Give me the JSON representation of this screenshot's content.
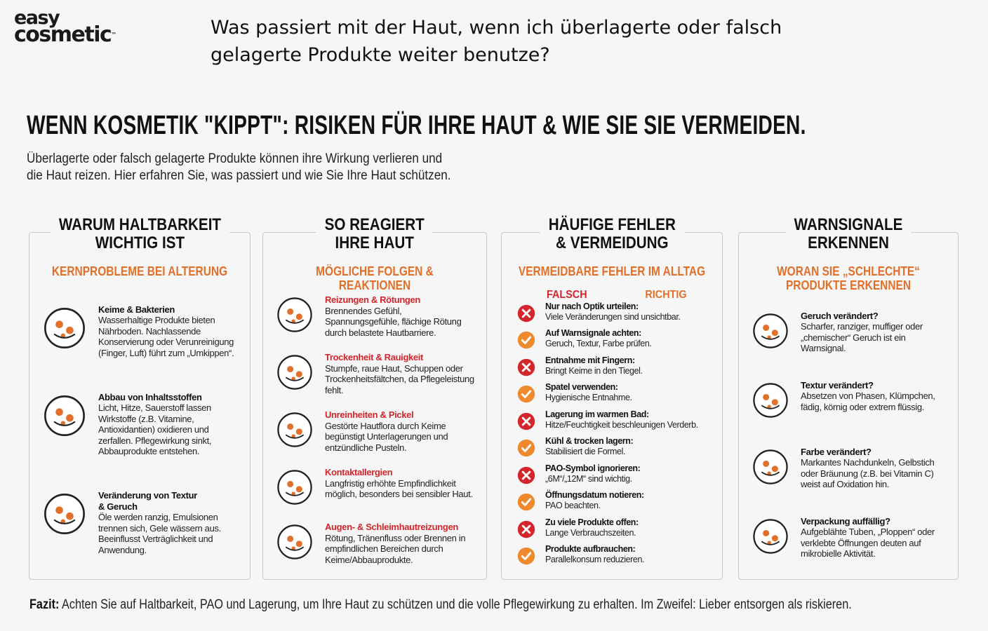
{
  "logo": {
    "line1": "easy",
    "line2": "cosmetic",
    "tm": "™"
  },
  "question": "Was passiert mit der Haut, wenn ich überlagerte oder falsch\ngelagerte Produkte weiter benutze?",
  "title": "WENN KOSMETIK \"KIPPT\": RISIKEN FÜR IHRE HAUT & WIE SIE SIE VERMEIDEN.",
  "intro": "Überlagerte oder falsch gelagerte Produkte können ihre Wirkung verlieren und\ndie Haut reizen. Hier erfahren Sie, was passiert und wie Sie Ihre Haut schützen.",
  "columns": [
    {
      "title": "WARUM HALTBARKEIT\nWICHTIG IST",
      "subtitle": "KERNPROBLEME BEI ALTERUNG",
      "items": [
        {
          "heading": "Keime & Bakterien",
          "text": "Wasserhaltige Produkte bieten Nährboden. Nachlassende Konservierung oder Verunreinigung (Finger, Luft) führt zum „Umkippen“."
        },
        {
          "heading": "Abbau von Inhaltsstoffen",
          "text": "Licht, Hitze, Sauerstoff lassen Wirkstoffe (z.B. Vitamine, Antioxidantien) oxidieren und zerfallen. Pflegewirkung sinkt, Abbauprodukte entstehen."
        },
        {
          "heading": "Veränderung von Textur\n& Geruch",
          "text": "Öle werden ranzig, Emulsionen trennen sich, Gele wässern aus. Beeinflusst Verträglichkeit und Anwendung."
        }
      ]
    },
    {
      "title": "SO REAGIERT\nIHRE HAUT",
      "subtitle": "MÖGLICHE FOLGEN & REAKTIONEN",
      "items": [
        {
          "heading": "Reizungen & Rötungen",
          "text": "Brennendes Gefühl, Spannungsgefühle, flächige Rötung durch belastete Hautbarriere."
        },
        {
          "heading": "Trockenheit & Rauigkeit",
          "text": "Stumpfe, raue Haut, Schuppen oder Trockenheitsfältchen, da Pflegeleistung fehlt."
        },
        {
          "heading": "Unreinheiten & Pickel",
          "text": "Gestörte Hautflora durch Keime begünstigt Unterlagerungen und entzündliche Pusteln."
        },
        {
          "heading": "Kontaktallergien",
          "text": "Langfristig erhöhte Empfindlichkeit möglich, besonders bei sensibler Haut."
        },
        {
          "heading": "Augen- & Schleimhautreizungen",
          "text": "Rötung, Tränenfluss oder Brennen in empfindlichen Bereichen durch Keime/Abbauprodukte."
        }
      ]
    },
    {
      "title": "HÄUFIGE FEHLER\n& VERMEIDUNG",
      "subtitle": "VERMEIDBARE FEHLER IM ALLTAG",
      "labels": {
        "wrong": "FALSCH",
        "right": "RICHTIG"
      },
      "pairs": [
        {
          "wrong": {
            "heading": "Nur nach Optik urteilen:",
            "text": "Viele Veränderungen sind unsichtbar."
          },
          "right": {
            "heading": "Auf Warnsignale achten:",
            "text": "Geruch, Textur, Farbe prüfen."
          }
        },
        {
          "wrong": {
            "heading": "Entnahme mit Fingern:",
            "text": "Bringt Keime in den Tiegel."
          },
          "right": {
            "heading": "Spatel verwenden:",
            "text": "Hygienische Entnahme."
          }
        },
        {
          "wrong": {
            "heading": "Lagerung im warmen Bad:",
            "text": "Hitze/Feuchtigkeit beschleunigen Verderb."
          },
          "right": {
            "heading": "Kühl & trocken lagern:",
            "text": "Stabilisiert die Formel."
          }
        },
        {
          "wrong": {
            "heading": "PAO-Symbol ignorieren:",
            "text": "„6M“/„12M“ sind wichtig."
          },
          "right": {
            "heading": "Öffnungsdatum notieren:",
            "text": "PAO beachten."
          }
        },
        {
          "wrong": {
            "heading": "Zu viele Produkte offen:",
            "text": "Lange Verbrauchszeiten."
          },
          "right": {
            "heading": "Produkte aufbrauchen:",
            "text": "Parallelkonsum reduzieren."
          }
        }
      ]
    },
    {
      "title": "WARNSIGNALE\nERKENNEN",
      "subtitle": "WORAN SIE „SCHLECHTE“\nPRODUKTE ERKENNEN",
      "items": [
        {
          "heading": "Geruch verändert?",
          "text": "Scharfer, ranziger, muffiger oder „chemischer“ Geruch ist ein Warnsignal."
        },
        {
          "heading": "Textur verändert?",
          "text": "Absetzen von Phasen, Klümpchen, fädig, körnig oder extrem flüssig."
        },
        {
          "heading": "Farbe verändert?",
          "text": "Markantes Nachdunkeln, Gelbstich oder Bräunung (z.B. bei Vitamin C) weist auf Oxidation hin."
        },
        {
          "heading": "Verpackung auffällig?",
          "text": "Aufgeblähte Tuben, „Ploppen“ oder verklebte Öffnungen deuten auf mikrobielle Aktivität."
        }
      ]
    }
  ],
  "conclusion": {
    "label": "Fazit:",
    "text": "Achten Sie auf Haltbarkeit, PAO und Lagerung, um Ihre Haut zu schützen und die volle Pflegewirkung zu erhalten. Im Zweifel: Lieber entsorgen als riskieren."
  }
}
